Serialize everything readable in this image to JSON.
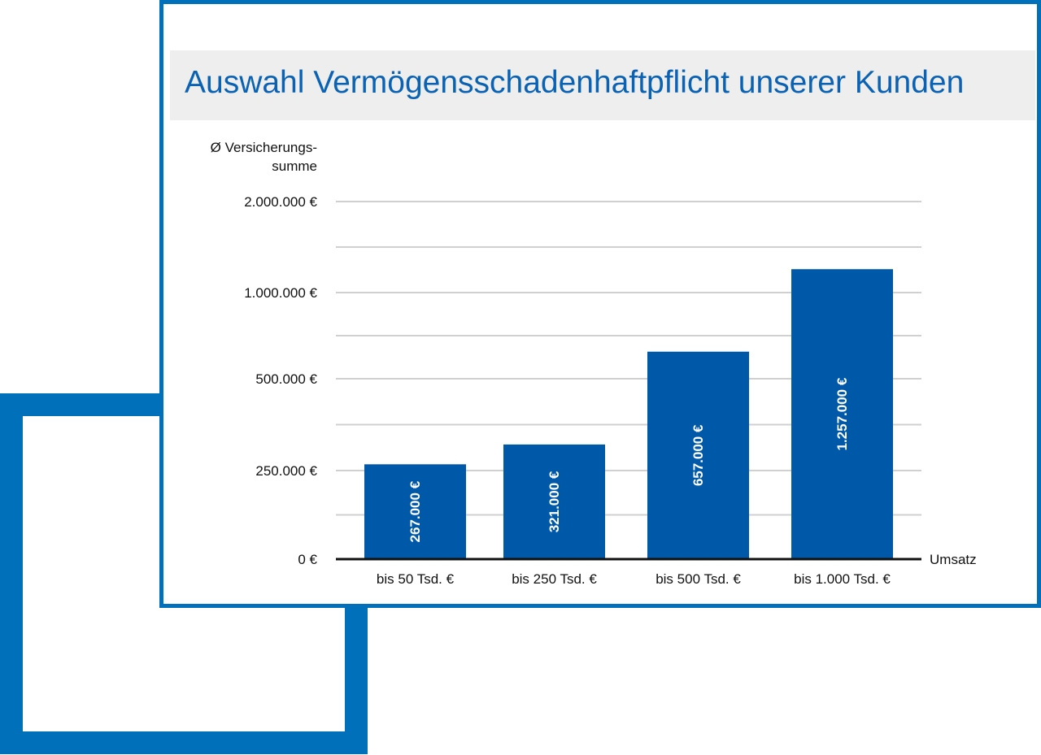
{
  "chart_data": {
    "type": "bar",
    "title": "Auswahl Vermögensschadenhaftpflicht unserer Kunden",
    "ylabel_line1": "Ø Versicherungs-",
    "ylabel_line2": "summe",
    "xlabel": "Umsatz",
    "categories": [
      "bis 50 Tsd. €",
      "bis 250 Tsd. €",
      "bis 500 Tsd. €",
      "bis 1.000 Tsd. €"
    ],
    "values": [
      267000,
      321000,
      657000,
      1257000
    ],
    "value_labels": [
      "267.000 €",
      "321.000 €",
      "657.000 €",
      "1.257.000 €"
    ],
    "yticks": [
      0,
      250000,
      500000,
      1000000,
      2000000
    ],
    "ytick_labels": [
      "0 €",
      "250.000 €",
      "500.000 €",
      "1.000.000 €",
      "2.000.000 €"
    ],
    "minor_gridlines": [
      125000,
      375000,
      750000,
      1500000
    ],
    "ylim": [
      0,
      2000000
    ],
    "y_scale": "non-linear (piecewise between labeled ticks)",
    "grid": true,
    "bar_color": "#0058a8",
    "title_color": "#0a62b4"
  }
}
